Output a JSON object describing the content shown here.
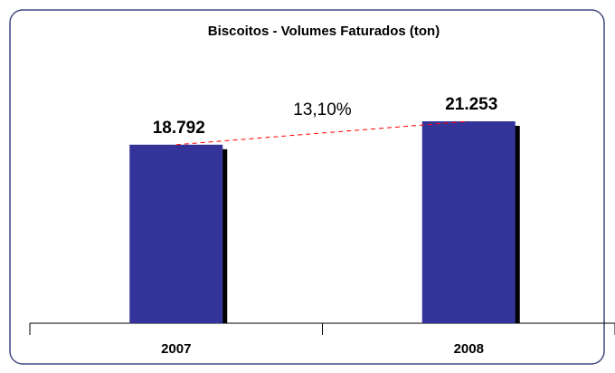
{
  "chart_data": {
    "type": "bar",
    "title": "Biscoitos - Volumes Faturados (ton)",
    "categories": [
      "2007",
      "2008"
    ],
    "values": [
      18792,
      21253
    ],
    "value_labels": [
      "18.792",
      "21.253"
    ],
    "color": "#333399",
    "annotation": "13,10%"
  }
}
